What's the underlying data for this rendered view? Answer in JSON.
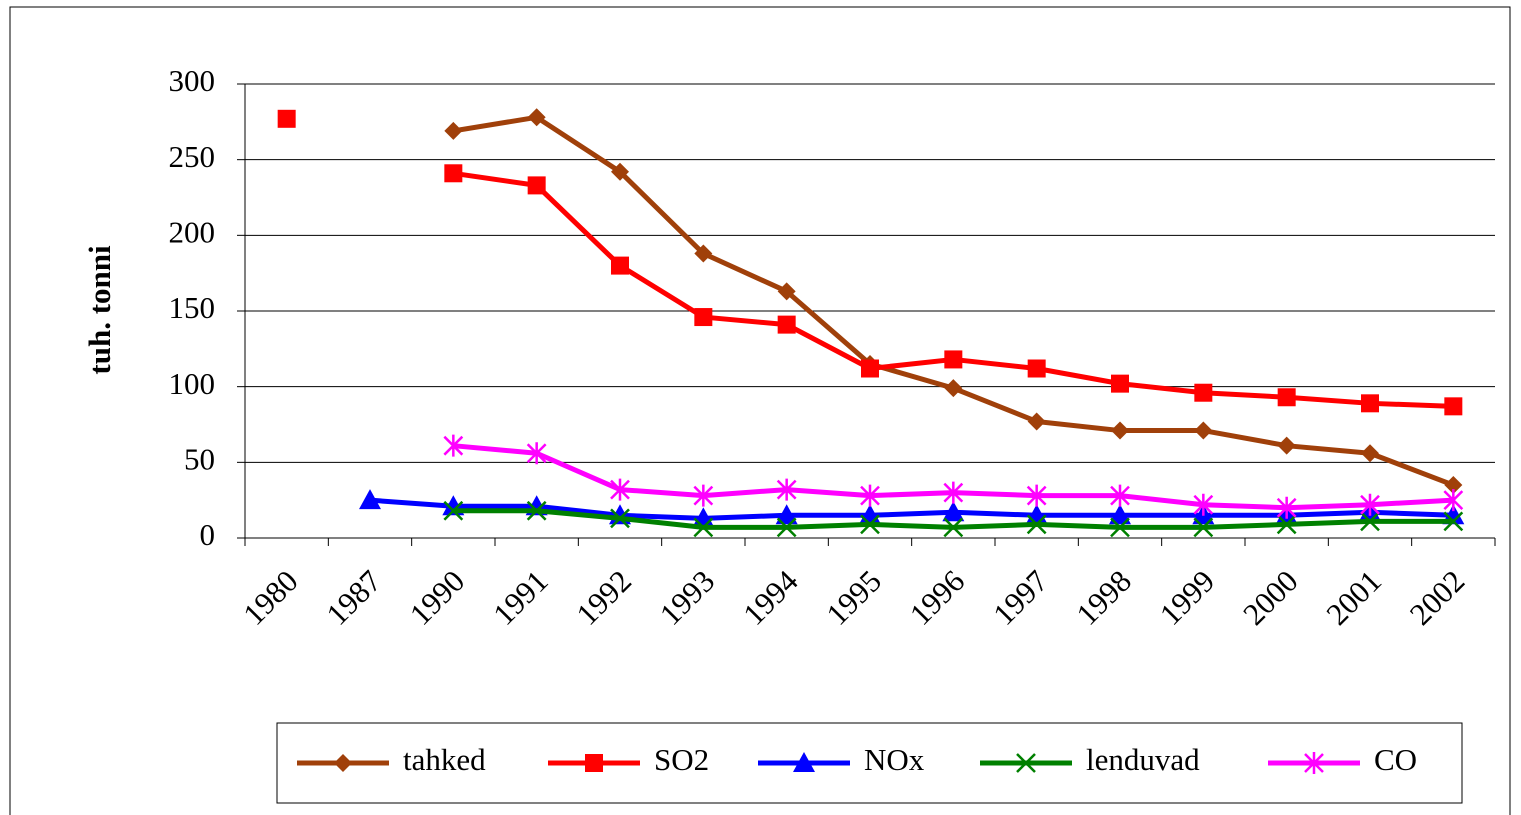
{
  "chart_data": {
    "type": "line",
    "y_label": "tuh. tonni",
    "categories": [
      "1980",
      "1987",
      "1990",
      "1991",
      "1992",
      "1993",
      "1994",
      "1995",
      "1996",
      "1997",
      "1998",
      "1999",
      "2000",
      "2001",
      "2002"
    ],
    "ylim": [
      0,
      300
    ],
    "yticks": [
      0,
      50,
      100,
      150,
      200,
      250,
      300
    ],
    "grid": true,
    "legend": "bottom",
    "series": [
      {
        "name": "tahked",
        "color": "#a0400a",
        "marker": "diamond",
        "values": [
          null,
          null,
          269,
          278,
          242,
          188,
          163,
          115,
          99,
          77,
          71,
          71,
          61,
          56,
          35
        ]
      },
      {
        "name": "SO2",
        "color": "#ff0000",
        "marker": "square",
        "values": [
          277,
          null,
          241,
          233,
          180,
          146,
          141,
          112,
          118,
          112,
          102,
          96,
          93,
          89,
          87
        ]
      },
      {
        "name": "NOx",
        "color": "#0000ff",
        "marker": "triangle",
        "values": [
          null,
          25,
          21,
          21,
          15,
          13,
          15,
          15,
          17,
          15,
          15,
          15,
          15,
          17,
          15
        ]
      },
      {
        "name": "lenduvad",
        "color": "#008000",
        "marker": "x",
        "values": [
          null,
          null,
          18,
          18,
          13,
          7,
          7,
          9,
          7,
          9,
          7,
          7,
          9,
          11,
          11
        ]
      },
      {
        "name": "CO",
        "color": "#ff00ff",
        "marker": "star",
        "values": [
          null,
          null,
          61,
          56,
          32,
          28,
          32,
          28,
          30,
          28,
          28,
          22,
          20,
          22,
          25
        ]
      }
    ]
  }
}
